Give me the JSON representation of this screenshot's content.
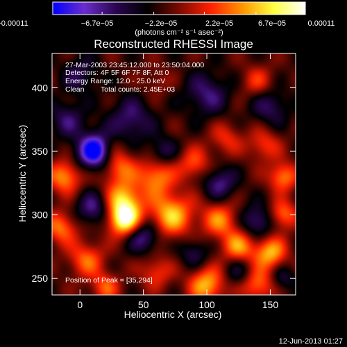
{
  "chart_data": {
    "type": "heatmap",
    "title": "Reconstructed RHESSI Image",
    "xlabel": "Heliocentric X (arcsec)",
    "ylabel": "Heliocentric Y (arcsec)",
    "xlim": [
      -22,
      170
    ],
    "ylim": [
      237,
      427
    ],
    "x_ticks": [
      {
        "value": 0,
        "label": "0"
      },
      {
        "value": 50,
        "label": "50"
      },
      {
        "value": 100,
        "label": "100"
      },
      {
        "value": 150,
        "label": "150"
      }
    ],
    "y_ticks": [
      {
        "value": 250,
        "label": "250"
      },
      {
        "value": 300,
        "label": "300"
      },
      {
        "value": 350,
        "label": "350"
      },
      {
        "value": 400,
        "label": "400"
      }
    ],
    "colorbar": {
      "min": -0.00011,
      "max": 0.00011,
      "ticks": [
        {
          "value": -0.00011,
          "label": "−0.00011"
        },
        {
          "value": -6.7e-05,
          "label": "−6.7e−05"
        },
        {
          "value": -2.2e-05,
          "label": "−2.2e−05"
        },
        {
          "value": 2.2e-05,
          "label": "2.2e−05"
        },
        {
          "value": 6.7e-05,
          "label": "6.7e−05"
        },
        {
          "value": 0.00011,
          "label": "0.00011"
        }
      ],
      "units": "(photons cm⁻² s⁻¹ asec⁻²)",
      "colors": [
        "#0000ff",
        "#6a2ecc",
        "#2a0550",
        "#000000",
        "#7a0a00",
        "#ff2000",
        "#ff9400",
        "#ffff40",
        "#ffffff"
      ]
    },
    "peak_position": [
      35,
      294
    ],
    "features": [
      {
        "x": 12,
        "y": 350,
        "v": -1.0,
        "w": 10
      },
      {
        "x": 35,
        "y": 296,
        "v": 1.0,
        "w": 9
      },
      {
        "x": 35,
        "y": 312,
        "v": 0.7,
        "w": 10
      },
      {
        "x": 72,
        "y": 300,
        "v": 0.75,
        "w": 12
      },
      {
        "x": 60,
        "y": 330,
        "v": 0.6,
        "w": 10
      },
      {
        "x": 30,
        "y": 338,
        "v": 0.55,
        "w": 10
      },
      {
        "x": 90,
        "y": 340,
        "v": 0.45,
        "w": 9
      },
      {
        "x": 110,
        "y": 296,
        "v": 0.55,
        "w": 10
      },
      {
        "x": 125,
        "y": 275,
        "v": 0.6,
        "w": 9
      },
      {
        "x": 150,
        "y": 270,
        "v": 0.7,
        "w": 9
      },
      {
        "x": 160,
        "y": 300,
        "v": 0.55,
        "w": 8
      },
      {
        "x": 160,
        "y": 330,
        "v": 0.6,
        "w": 8
      },
      {
        "x": -12,
        "y": 330,
        "v": 0.65,
        "w": 9
      },
      {
        "x": -15,
        "y": 290,
        "v": 0.55,
        "w": 9
      },
      {
        "x": 5,
        "y": 265,
        "v": 0.5,
        "w": 10
      },
      {
        "x": 100,
        "y": 245,
        "v": 0.7,
        "w": 10
      },
      {
        "x": 140,
        "y": 245,
        "v": 0.55,
        "w": 9
      },
      {
        "x": 60,
        "y": 255,
        "v": 0.4,
        "w": 9
      },
      {
        "x": 20,
        "y": 243,
        "v": 0.45,
        "w": 8
      },
      {
        "x": 115,
        "y": 360,
        "v": 0.35,
        "w": 9
      },
      {
        "x": 145,
        "y": 355,
        "v": 0.4,
        "w": 9
      },
      {
        "x": 60,
        "y": 405,
        "v": 0.2,
        "w": 8
      },
      {
        "x": 140,
        "y": 405,
        "v": 0.35,
        "w": 9
      },
      {
        "x": 25,
        "y": 355,
        "v": 0.15,
        "w": 7
      },
      {
        "x": 10,
        "y": 305,
        "v": -0.5,
        "w": 9
      },
      {
        "x": 50,
        "y": 283,
        "v": -0.55,
        "w": 9
      },
      {
        "x": 140,
        "y": 295,
        "v": -0.5,
        "w": 9
      },
      {
        "x": 90,
        "y": 270,
        "v": -0.35,
        "w": 8
      },
      {
        "x": 40,
        "y": 375,
        "v": -0.45,
        "w": 12
      },
      {
        "x": 100,
        "y": 395,
        "v": -0.45,
        "w": 12
      },
      {
        "x": 150,
        "y": 385,
        "v": -0.4,
        "w": 10
      },
      {
        "x": 110,
        "y": 325,
        "v": -0.5,
        "w": 9
      },
      {
        "x": 65,
        "y": 350,
        "v": -0.35,
        "w": 8
      },
      {
        "x": -10,
        "y": 375,
        "v": -0.4,
        "w": 10
      },
      {
        "x": 0,
        "y": 410,
        "v": -0.35,
        "w": 10
      },
      {
        "x": 125,
        "y": 255,
        "v": -0.3,
        "w": 8
      },
      {
        "x": 160,
        "y": 250,
        "v": -0.3,
        "w": 7
      }
    ]
  },
  "colorbar_labels": {
    "tick_0": "−0.00011",
    "tick_1": "−6.7e−05",
    "tick_2": "−2.2e−05",
    "tick_3": "2.2e−05",
    "tick_4": "6.7e−05",
    "tick_5": "0.00011",
    "units": "(photons cm⁻² s⁻¹ asec⁻²)"
  },
  "plot": {
    "title": "Reconstructed RHESSI Image",
    "xlabel": "Heliocentric X (arcsec)",
    "ylabel": "Heliocentric Y (arcsec)"
  },
  "annotations": {
    "time_range": "27-Mar-2003 23:45:12.000 to 23:50:04.000",
    "detectors": "Detectors: 4F 5F 6F 7F 8F, Att 0",
    "energy_range": "Energy Range: 12.0 - 25.0 keV",
    "method": "Clean",
    "total_counts": "Total counts: 2.45E+03",
    "peak": "Position of Peak = [35,294]"
  },
  "footer": {
    "date": "12-Jun-2013 01:27"
  }
}
